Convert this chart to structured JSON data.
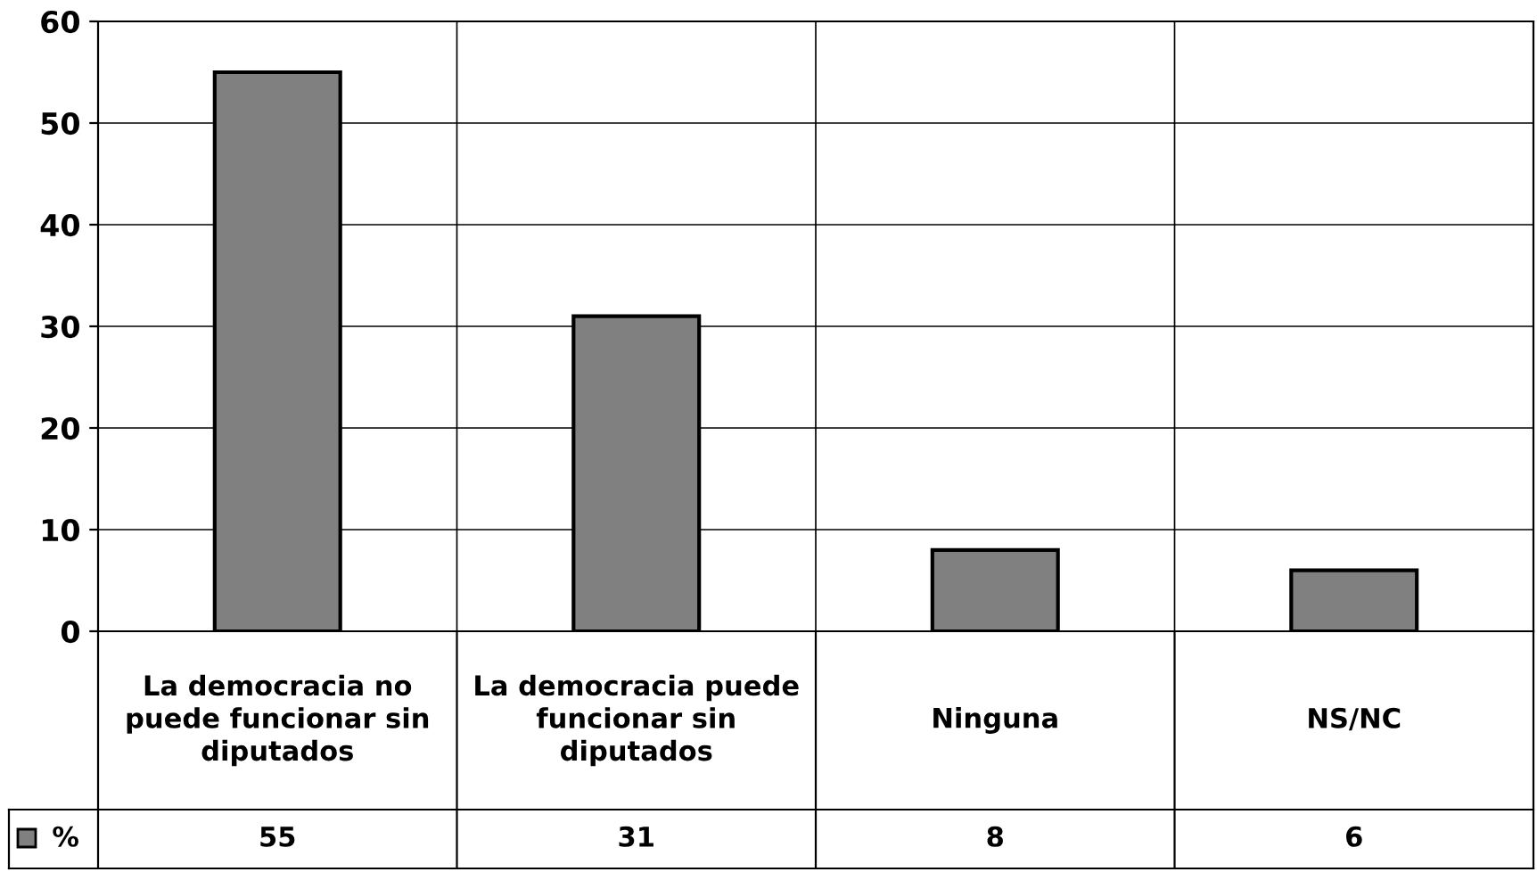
{
  "chart_data": {
    "type": "bar",
    "categories": [
      "La democracia no puede funcionar sin diputados",
      "La democracia puede funcionar sin diputados",
      "Ninguna",
      "NS/NC"
    ],
    "series": [
      {
        "name": "%",
        "color": "#808080",
        "values": [
          55,
          31,
          8,
          6
        ]
      }
    ],
    "ylim": [
      0,
      60
    ],
    "yticks": [
      0,
      10,
      20,
      30,
      40,
      50,
      60
    ],
    "grid": true,
    "data_labels": true,
    "legend": "bottom left"
  }
}
